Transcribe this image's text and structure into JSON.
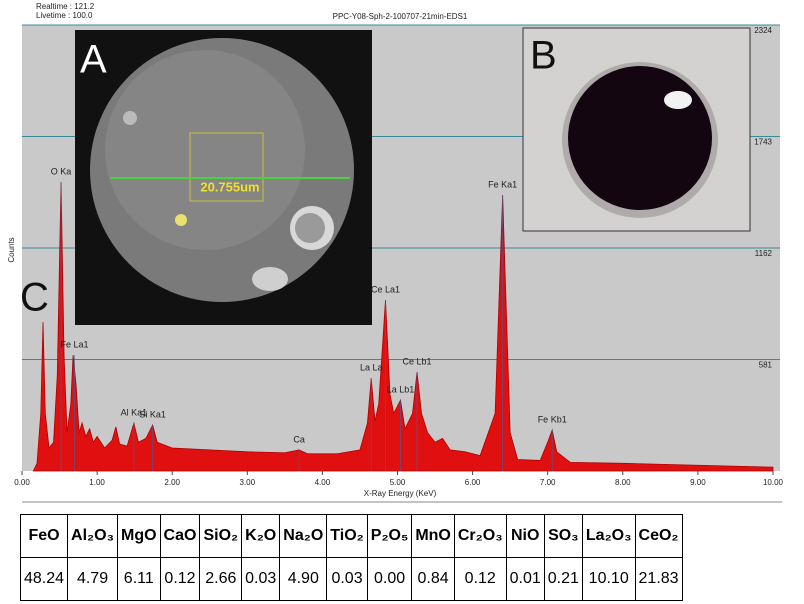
{
  "chart_data": {
    "type": "area",
    "header_left": [
      "Realtime : 121.2",
      "Livetime : 100.0"
    ],
    "title": "PPC-Y08-Sph-2-100707-21min-EDS1",
    "xlabel": "X-Ray Energy (KeV)",
    "ylabel": "Counts",
    "color": "#e01010",
    "xlim": [
      0,
      10
    ],
    "ylim": [
      0,
      2324
    ],
    "xticks": [
      {
        "value": 0,
        "label": "0.00"
      },
      {
        "value": 1,
        "label": "1.00"
      },
      {
        "value": 2,
        "label": "2.00"
      },
      {
        "value": 3,
        "label": "3.00"
      },
      {
        "value": 4,
        "label": "4.00"
      },
      {
        "value": 5,
        "label": "5.00"
      },
      {
        "value": 6,
        "label": "6.00"
      },
      {
        "value": 7,
        "label": "7.00"
      },
      {
        "value": 8,
        "label": "8.00"
      },
      {
        "value": 9,
        "label": "9.00"
      },
      {
        "value": 10,
        "label": "10.00"
      }
    ],
    "yticks": [
      581,
      1162,
      1743,
      2324
    ],
    "grid": true,
    "x": [
      0.15,
      0.2,
      0.25,
      0.28,
      0.31,
      0.36,
      0.42,
      0.47,
      0.52,
      0.56,
      0.6,
      0.65,
      0.68,
      0.72,
      0.76,
      0.8,
      0.85,
      0.9,
      0.95,
      1.0,
      1.1,
      1.2,
      1.25,
      1.3,
      1.4,
      1.49,
      1.55,
      1.65,
      1.74,
      1.8,
      2.0,
      2.5,
      3.0,
      3.5,
      3.69,
      3.8,
      4.2,
      4.5,
      4.6,
      4.65,
      4.7,
      4.75,
      4.84,
      4.9,
      4.95,
      5.04,
      5.1,
      5.2,
      5.26,
      5.32,
      5.4,
      5.5,
      5.6,
      5.7,
      5.9,
      6.1,
      6.3,
      6.4,
      6.5,
      6.6,
      6.9,
      7.0,
      7.06,
      7.12,
      7.3,
      8.0,
      9.0,
      10.0
    ],
    "values": [
      0,
      40,
      300,
      776,
      300,
      120,
      150,
      500,
      1506,
      600,
      200,
      350,
      604,
      450,
      200,
      250,
      180,
      220,
      150,
      180,
      120,
      160,
      230,
      140,
      130,
      250,
      150,
      170,
      240,
      150,
      120,
      110,
      100,
      95,
      110,
      90,
      90,
      110,
      250,
      484,
      260,
      350,
      891,
      400,
      300,
      370,
      220,
      300,
      516,
      300,
      200,
      150,
      170,
      110,
      100,
      80,
      300,
      1438,
      200,
      60,
      55,
      150,
      214,
      100,
      45,
      40,
      30,
      20
    ],
    "annotations": [
      {
        "text": "O Ka",
        "x": 0.52,
        "y": 1506
      },
      {
        "text": "Fe La1",
        "x": 0.7,
        "y": 604
      },
      {
        "text": "Al Ka1",
        "x": 1.49,
        "y": 250
      },
      {
        "text": "Si Ka1",
        "x": 1.74,
        "y": 240
      },
      {
        "text": "Ca",
        "x": 3.69,
        "y": 110
      },
      {
        "text": "La La",
        "x": 4.65,
        "y": 484
      },
      {
        "text": "Ce La1",
        "x": 4.84,
        "y": 891
      },
      {
        "text": "La Lb1",
        "x": 5.04,
        "y": 370
      },
      {
        "text": "Ce Lb1",
        "x": 5.26,
        "y": 516
      },
      {
        "text": "Fe Ka1",
        "x": 6.4,
        "y": 1438
      },
      {
        "text": "Fe Kb1",
        "x": 7.06,
        "y": 214
      }
    ],
    "panels": [
      "A",
      "B",
      "C"
    ],
    "scale_bar": "20.755um"
  },
  "table": {
    "header": [
      "FeO",
      "Al₂O₃",
      "MgO",
      "CaO",
      "SiO₂",
      "K₂O",
      "Na₂O",
      "TiO₂",
      "P₂O₅",
      "MnO",
      "Cr₂O₃",
      "NiO",
      "SO₃",
      "La₂O₃",
      "CeO₂"
    ],
    "rows": [
      [
        "48.24",
        "4.79",
        "6.11",
        "0.12",
        "2.66",
        "0.03",
        "4.90",
        "0.03",
        "0.00",
        "0.84",
        "0.12",
        "0.01",
        "0.21",
        "10.10",
        "21.83"
      ]
    ]
  }
}
